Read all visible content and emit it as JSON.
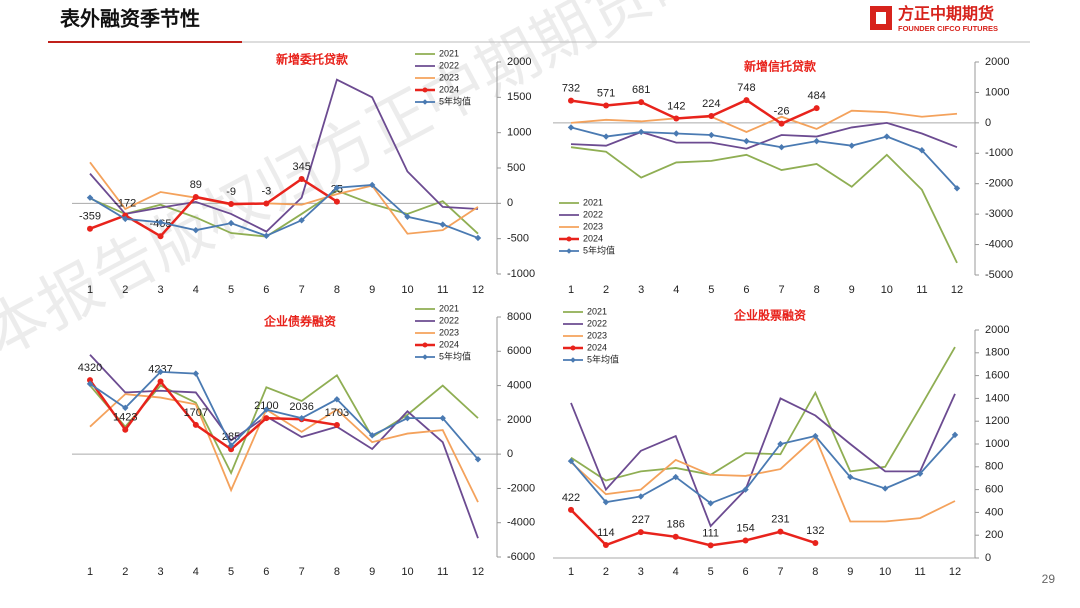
{
  "title": "表外融资季节性",
  "logo": {
    "name": "方正中期期货",
    "english": "FOUNDER CIFCO FUTURES"
  },
  "page_number": "29",
  "watermark": "本报告版权归方正中期期货研究院所有",
  "chart_data": [
    {
      "type": "line",
      "title": "新增委托贷款",
      "categories": [
        "1",
        "2",
        "3",
        "4",
        "5",
        "6",
        "7",
        "8",
        "9",
        "10",
        "11",
        "12"
      ],
      "ylim": [
        -1000,
        2000
      ],
      "yticks": [
        -1000,
        -500,
        0,
        500,
        1000,
        1500,
        2000
      ],
      "grid": false,
      "legend": "upper right",
      "series": [
        {
          "name": "2021",
          "color": "#8fae53",
          "values": [
            70,
            -150,
            -20,
            -200,
            -420,
            -470,
            -150,
            180,
            -10,
            -150,
            30,
            -430
          ]
        },
        {
          "name": "2022",
          "color": "#6c4b91",
          "values": [
            420,
            -150,
            -60,
            20,
            -150,
            -400,
            80,
            1750,
            1500,
            450,
            -50,
            -80
          ]
        },
        {
          "name": "2023",
          "color": "#f4a25c",
          "values": [
            580,
            -80,
            160,
            80,
            -20,
            0,
            -20,
            130,
            250,
            -430,
            -380,
            -50
          ]
        },
        {
          "name": "2024",
          "color": "#e8231c",
          "values": [
            -359,
            -172,
            -465,
            89,
            -9,
            -3,
            345,
            25,
            null,
            null,
            null,
            null
          ]
        },
        {
          "name": "5年均值",
          "color": "#4a7ab2",
          "values": [
            80,
            -220,
            -270,
            -380,
            -280,
            -460,
            -240,
            220,
            260,
            -190,
            -300,
            -490
          ]
        }
      ]
    },
    {
      "type": "line",
      "title": "新增信托贷款",
      "categories": [
        "1",
        "2",
        "3",
        "4",
        "5",
        "6",
        "7",
        "8",
        "9",
        "10",
        "11",
        "12"
      ],
      "ylim": [
        -5000,
        2000
      ],
      "yticks": [
        -5000,
        -4000,
        -3000,
        -2000,
        -1000,
        0,
        1000,
        2000
      ],
      "grid": false,
      "legend": "lower left",
      "series": [
        {
          "name": "2021",
          "color": "#8fae53",
          "values": [
            -800,
            -950,
            -1800,
            -1300,
            -1250,
            -1050,
            -1550,
            -1350,
            -2100,
            -1050,
            -2200,
            -4600
          ]
        },
        {
          "name": "2022",
          "color": "#6c4b91",
          "values": [
            -700,
            -750,
            -300,
            -650,
            -650,
            -850,
            -400,
            -450,
            -150,
            0,
            -350,
            -800
          ]
        },
        {
          "name": "2023",
          "color": "#f4a25c",
          "values": [
            0,
            100,
            50,
            150,
            200,
            -300,
            200,
            -200,
            400,
            350,
            200,
            300
          ]
        },
        {
          "name": "2024",
          "color": "#e8231c",
          "values": [
            732,
            571,
            681,
            142,
            224,
            748,
            -26,
            484,
            null,
            null,
            null,
            null
          ]
        },
        {
          "name": "5年均值",
          "color": "#4a7ab2",
          "values": [
            -150,
            -450,
            -300,
            -350,
            -400,
            -600,
            -800,
            -600,
            -750,
            -450,
            -900,
            -2150
          ]
        }
      ]
    },
    {
      "type": "line",
      "title": "企业债券融资",
      "categories": [
        "1",
        "2",
        "3",
        "4",
        "5",
        "6",
        "7",
        "8",
        "9",
        "10",
        "11",
        "12"
      ],
      "ylim": [
        -6000,
        8000
      ],
      "yticks": [
        -6000,
        -4000,
        -2000,
        0,
        2000,
        4000,
        6000,
        8000
      ],
      "grid": false,
      "legend": "upper right",
      "series": [
        {
          "name": "2021",
          "color": "#8fae53",
          "values": [
            4000,
            1600,
            4000,
            3000,
            -1100,
            3900,
            3100,
            4600,
            1000,
            2300,
            4000,
            2100
          ]
        },
        {
          "name": "2022",
          "color": "#6c4b91",
          "values": [
            5800,
            3600,
            3700,
            3600,
            800,
            2200,
            1000,
            1600,
            300,
            2500,
            700,
            -4900
          ]
        },
        {
          "name": "2023",
          "color": "#f4a25c",
          "values": [
            1600,
            3500,
            3300,
            2900,
            -2100,
            2600,
            1300,
            2600,
            700,
            1200,
            1400,
            -2800
          ]
        },
        {
          "name": "2024",
          "color": "#e8231c",
          "values": [
            4320,
            1423,
            4237,
            1707,
            285,
            2100,
            2036,
            1703,
            null,
            null,
            null,
            null
          ]
        },
        {
          "name": "5年均值",
          "color": "#4a7ab2",
          "values": [
            4100,
            2700,
            4800,
            4700,
            500,
            2600,
            2100,
            3200,
            1100,
            2100,
            2100,
            -300
          ]
        }
      ]
    },
    {
      "type": "line",
      "title": "企业股票融资",
      "categories": [
        "1",
        "2",
        "3",
        "4",
        "5",
        "6",
        "7",
        "8",
        "9",
        "10",
        "11",
        "12"
      ],
      "ylim": [
        0,
        2000
      ],
      "yticks": [
        0,
        200,
        400,
        600,
        800,
        1000,
        1200,
        1400,
        1600,
        1800,
        2000
      ],
      "grid": false,
      "legend": "upper left",
      "series": [
        {
          "name": "2021",
          "color": "#8fae53",
          "values": [
            880,
            680,
            760,
            790,
            730,
            920,
            910,
            1450,
            760,
            800,
            1320,
            1850
          ]
        },
        {
          "name": "2022",
          "color": "#6c4b91",
          "values": [
            1360,
            600,
            940,
            1070,
            280,
            600,
            1400,
            1250,
            1000,
            760,
            760,
            1440
          ]
        },
        {
          "name": "2023",
          "color": "#f4a25c",
          "values": [
            840,
            560,
            600,
            860,
            730,
            720,
            780,
            1060,
            320,
            320,
            350,
            500
          ]
        },
        {
          "name": "2024",
          "color": "#e8231c",
          "values": [
            422,
            114,
            227,
            186,
            111,
            154,
            231,
            132,
            null,
            null,
            null,
            null
          ]
        },
        {
          "name": "5年均值",
          "color": "#4a7ab2",
          "values": [
            850,
            490,
            540,
            710,
            480,
            600,
            1000,
            1070,
            710,
            610,
            740,
            1080
          ]
        }
      ]
    }
  ]
}
